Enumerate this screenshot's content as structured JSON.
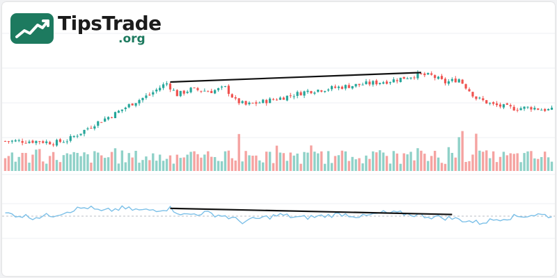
{
  "logo": {
    "name": "TipsTrade",
    "suffix": ".org",
    "icon": "trend-chart-icon",
    "colors": {
      "mark_bg": "#1d7a5f",
      "mark_fg": "#ffffff",
      "name": "#1b1b1b",
      "suffix": "#1d7a5f"
    }
  },
  "colors": {
    "up": "#26a69a",
    "down": "#ef5350",
    "volume_up": "#8fd1c8",
    "volume_down": "#f5a3a1",
    "oscillator": "#7cc0e8",
    "midline": "#b8bcc4",
    "trendline": "#111111",
    "grid": "#eceff3"
  },
  "chart_data": {
    "type": "candlestick",
    "title": "",
    "xlabel": "",
    "ylabel": "",
    "grid": true,
    "legend": "none",
    "panes": [
      "price",
      "volume",
      "oscillator"
    ],
    "price": {
      "n_bars": 160,
      "close_path": [
        [
          0,
          8
        ],
        [
          10,
          8
        ],
        [
          14,
          6
        ],
        [
          18,
          9
        ],
        [
          22,
          18
        ],
        [
          26,
          28
        ],
        [
          32,
          40
        ],
        [
          37,
          52
        ],
        [
          42,
          62
        ],
        [
          46,
          73
        ],
        [
          47,
          75
        ],
        [
          50,
          62
        ],
        [
          54,
          68
        ],
        [
          60,
          66
        ],
        [
          64,
          70
        ],
        [
          67,
          55
        ],
        [
          70,
          50
        ],
        [
          74,
          53
        ],
        [
          80,
          58
        ],
        [
          88,
          66
        ],
        [
          96,
          70
        ],
        [
          104,
          74
        ],
        [
          112,
          78
        ],
        [
          120,
          85
        ],
        [
          124,
          84
        ],
        [
          128,
          76
        ],
        [
          132,
          80
        ],
        [
          137,
          58
        ],
        [
          142,
          50
        ],
        [
          148,
          46
        ],
        [
          153,
          47
        ],
        [
          156,
          45
        ],
        [
          159,
          44
        ]
      ],
      "divergence_line": {
        "from": [
          48,
          75
        ],
        "to": [
          121,
          86
        ]
      }
    },
    "volume": {
      "n_bars": 160,
      "spikes": [
        68,
        132,
        133,
        137
      ]
    },
    "oscillator": {
      "midline": 50,
      "path": [
        [
          0,
          55
        ],
        [
          8,
          48
        ],
        [
          14,
          52
        ],
        [
          20,
          62
        ],
        [
          24,
          66
        ],
        [
          28,
          58
        ],
        [
          34,
          64
        ],
        [
          40,
          60
        ],
        [
          46,
          63
        ],
        [
          48,
          64
        ],
        [
          52,
          52
        ],
        [
          58,
          56
        ],
        [
          64,
          50
        ],
        [
          69,
          40
        ],
        [
          74,
          46
        ],
        [
          80,
          52
        ],
        [
          86,
          47
        ],
        [
          92,
          50
        ],
        [
          98,
          54
        ],
        [
          104,
          49
        ],
        [
          110,
          56
        ],
        [
          115,
          55
        ],
        [
          120,
          52
        ],
        [
          124,
          49
        ],
        [
          130,
          46
        ],
        [
          138,
          38
        ],
        [
          144,
          46
        ],
        [
          150,
          50
        ],
        [
          155,
          53
        ],
        [
          159,
          50
        ]
      ],
      "divergence_line": {
        "from": [
          48,
          64
        ],
        "to": [
          130,
          53
        ]
      }
    }
  }
}
